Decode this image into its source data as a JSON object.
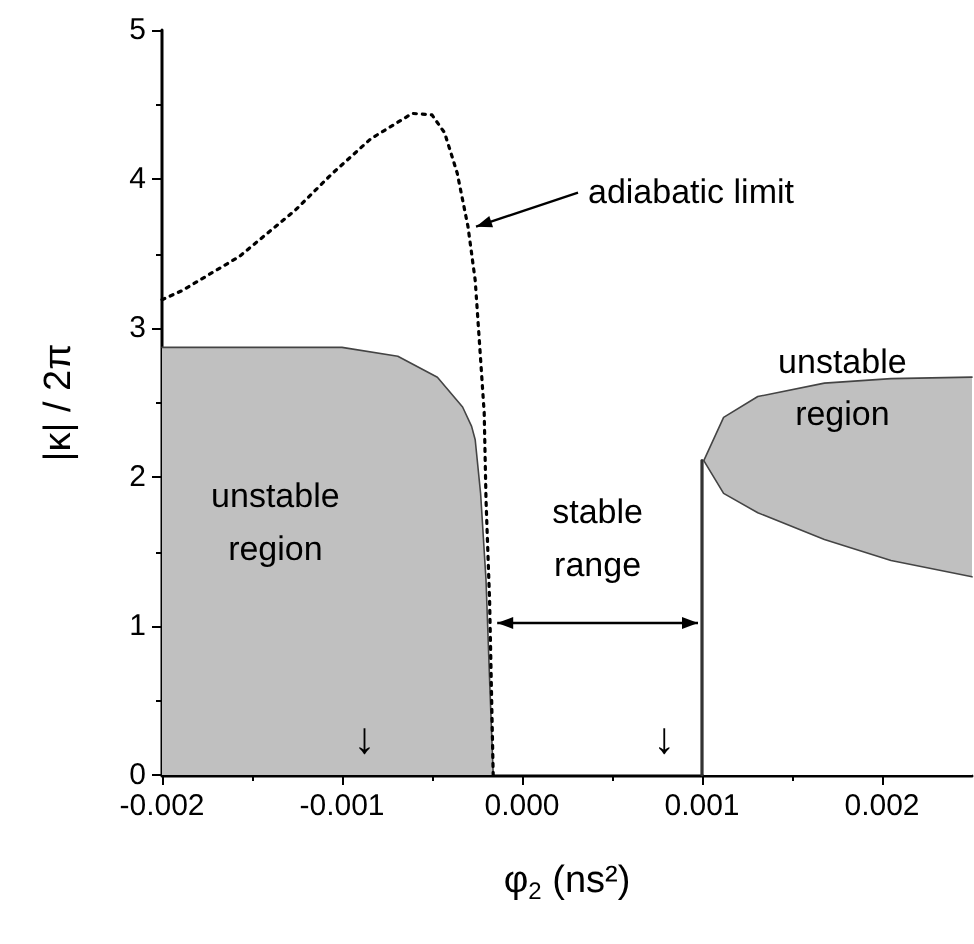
{
  "chart_data": {
    "type": "area",
    "xlabel": "φ$_{2}$ (ns²)",
    "ylabel": "|κ| / 2π",
    "xlim": [
      -0.002,
      0.0025
    ],
    "xticks": [
      -0.002,
      -0.001,
      {
        "value": 0,
        "label": "0.000"
      },
      0.001,
      0.002
    ],
    "ylim": [
      0,
      5
    ],
    "yticks": [
      0,
      1,
      2,
      3,
      4,
      5
    ],
    "grid": false,
    "marker": "none",
    "series": [
      {
        "color": "#c0c0c0",
        "x": [
          -0.002,
          -0.001,
          -0.00069,
          -0.00047,
          -0.00033,
          -0.00028,
          -0.00026,
          -0.00023,
          -0.0002,
          -0.00018,
          -0.00016
        ],
        "values": [
          2.87,
          2.87,
          2.81,
          2.67,
          2.47,
          2.34,
          2.25,
          1.89,
          1.31,
          0.64,
          0
        ]
      },
      {
        "type": "line",
        "line_style": "dotted",
        "color": "#000000",
        "x": [
          -0.002,
          -0.00189,
          -0.00157,
          -0.00126,
          -0.00106,
          -0.00084,
          -0.00061,
          -0.0005,
          -0.00043,
          -0.00036,
          -0.0003,
          -0.00026,
          -0.00023,
          -0.00021,
          -0.0002,
          -0.00018,
          -0.00016
        ],
        "values": [
          3.19,
          3.25,
          3.48,
          3.79,
          4.03,
          4.27,
          4.44,
          4.43,
          4.31,
          4.04,
          3.68,
          3.32,
          2.79,
          2.43,
          1.85,
          1.17,
          0
        ]
      },
      {
        "type": "line",
        "line_style": "solid",
        "color": "#333333",
        "x": [
          0.001,
          0.001
        ],
        "values": [
          0,
          2.11
        ]
      },
      {
        "type": "area",
        "color": "#c0c0c0",
        "x": [
          0.00101,
          0.00112,
          0.00131,
          0.00168,
          0.00205,
          0.0025
        ],
        "values": [
          2.11,
          2.4,
          2.54,
          2.63,
          2.66,
          2.67
        ]
      },
      {
        "type": "area",
        "color": "#ffffff",
        "x": [
          0.00101,
          0.00112,
          0.00131,
          0.00168,
          0.00205,
          0.0025
        ],
        "values": [
          2.11,
          1.89,
          1.76,
          1.58,
          1.44,
          1.33
        ]
      }
    ],
    "annotations": [
      {
        "text": "adiabatic limit",
        "x": -0.0003,
        "y": 3.68
      },
      "unstable region",
      "stable range",
      "unstable region",
      "↓",
      "↓"
    ]
  }
}
